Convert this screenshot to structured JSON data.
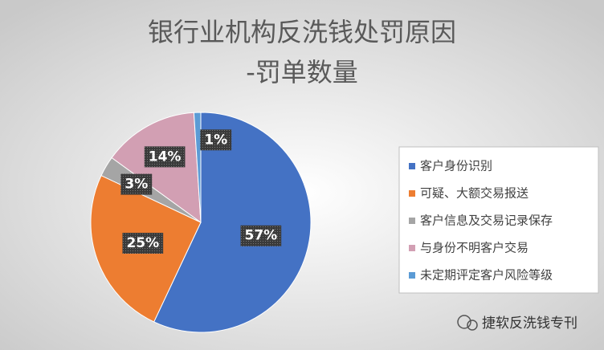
{
  "chart_data": {
    "type": "pie",
    "title": "银行业机构反洗钱处罚原因",
    "subtitle": "-罚单数量",
    "categories": [
      "客户身份识别",
      "可疑、大额交易报送",
      "客户信息及交易记录保存",
      "与身份不明客户交易",
      "未定期评定客户风险等级"
    ],
    "values": [
      57,
      25,
      3,
      14,
      1
    ],
    "value_labels": [
      "57%",
      "25%",
      "3%",
      "14%",
      "1%"
    ],
    "colors": [
      "#4472c4",
      "#ed7d31",
      "#a5a5a5",
      "#d29fb3",
      "#5b9bd5"
    ],
    "legend": "right"
  },
  "watermark": "捷软反洗钱专刊"
}
